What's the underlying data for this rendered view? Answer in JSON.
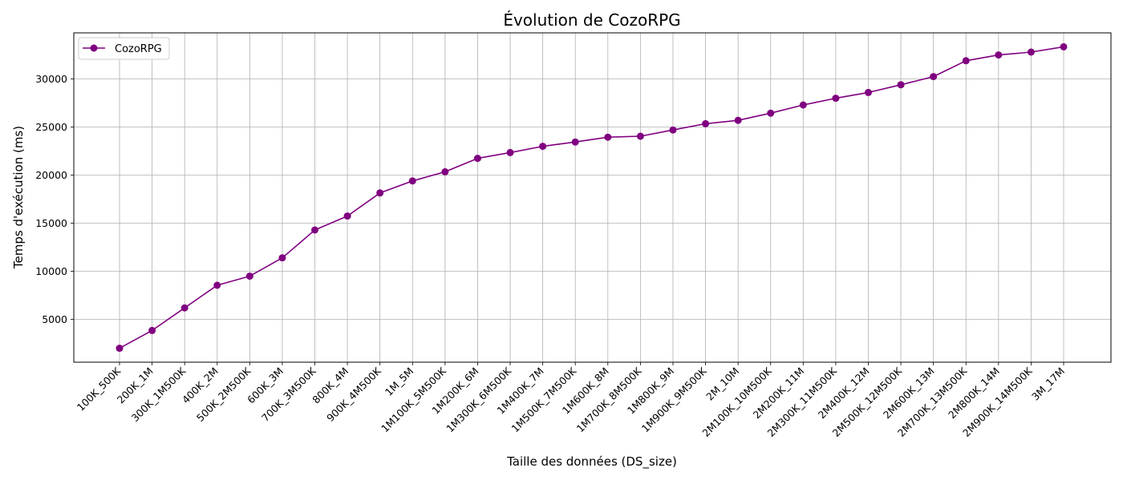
{
  "chart_data": {
    "type": "line",
    "title": "Évolution de CozoRPG",
    "xlabel": "Taille des données (DS_size)",
    "ylabel": "Temps d'exécution (ms)",
    "categories": [
      "100K_500K",
      "200K_1M",
      "300K_1M500K",
      "400K_2M",
      "500K_2M500K",
      "600K_3M",
      "700K_3M500K",
      "800K_4M",
      "900K_4M500K",
      "1M_5M",
      "1M100K_5M500K",
      "1M200K_6M",
      "1M300K_6M500K",
      "1M400K_7M",
      "1M500K_7M500K",
      "1M600K_8M",
      "1M700K_8M500K",
      "1M800K_9M",
      "1M900K_9M500K",
      "2M_10M",
      "2M100K_10M500K",
      "2M200K_11M",
      "2M300K_11M500K",
      "2M400K_12M",
      "2M500K_12M500K",
      "2M600K_13M",
      "2M700K_13M500K",
      "2M800K_14M",
      "2M900K_14M500K",
      "3M_17M"
    ],
    "series": [
      {
        "name": "CozoRPG",
        "color": "#800080",
        "marker": "circle",
        "values": [
          2000,
          3850,
          6200,
          8550,
          9500,
          11400,
          14300,
          15750,
          18150,
          19400,
          20350,
          21750,
          22350,
          23000,
          23450,
          23950,
          24050,
          24700,
          25350,
          25700,
          26450,
          27300,
          28000,
          28600,
          29400,
          30250,
          31900,
          32500,
          32800,
          33350
        ]
      }
    ],
    "yticks": [
      5000,
      10000,
      15000,
      20000,
      25000,
      30000
    ],
    "ylim": [
      550,
      34800
    ],
    "grid": true,
    "legend_position": "upper-left"
  }
}
